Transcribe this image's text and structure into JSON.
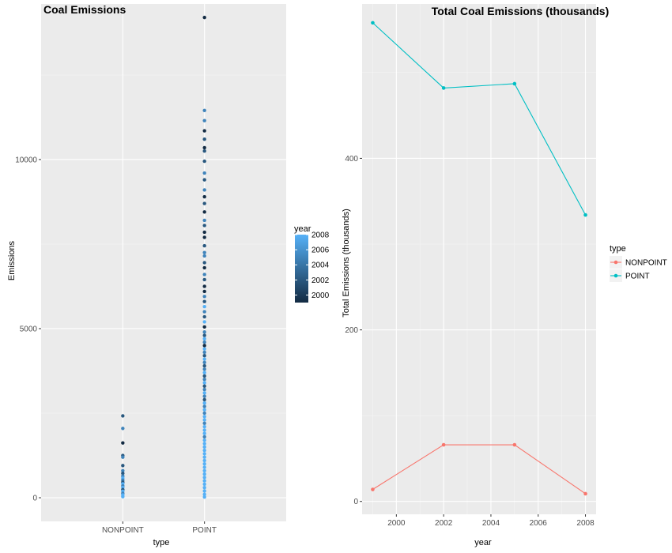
{
  "chart_data": [
    {
      "type": "scatter",
      "title": "Coal Emissions",
      "xlabel": "type",
      "ylabel": "Emissions",
      "categories": [
        "NONPOINT",
        "POINT"
      ],
      "ylim": [
        -700,
        14600
      ],
      "yticks": [
        0,
        5000,
        10000
      ],
      "grid": true,
      "legend": {
        "title": "year",
        "position": "right",
        "labels": [
          "2008",
          "2006",
          "2004",
          "2002",
          "2000"
        ],
        "color_low": "#132b43",
        "color_high": "#56b1f7",
        "range": [
          1999,
          2008
        ]
      },
      "points": {
        "NONPOINT": [
          {
            "y": 2420,
            "year": 2002
          },
          {
            "y": 2050,
            "year": 2005
          },
          {
            "y": 1620,
            "year": 1999
          },
          {
            "y": 1250,
            "year": 2002
          },
          {
            "y": 1200,
            "year": 2005
          },
          {
            "y": 950,
            "year": 2002
          },
          {
            "y": 800,
            "year": 2005
          },
          {
            "y": 720,
            "year": 2002
          },
          {
            "y": 640,
            "year": 2005
          },
          {
            "y": 580,
            "year": 2008
          },
          {
            "y": 520,
            "year": 2005
          },
          {
            "y": 460,
            "year": 2002
          },
          {
            "y": 410,
            "year": 2008
          },
          {
            "y": 350,
            "year": 2005
          },
          {
            "y": 300,
            "year": 2008
          },
          {
            "y": 240,
            "year": 2002
          },
          {
            "y": 190,
            "year": 2008
          },
          {
            "y": 130,
            "year": 2005
          },
          {
            "y": 80,
            "year": 2008
          },
          {
            "y": 30,
            "year": 2008
          }
        ],
        "POINT": [
          {
            "y": 14200,
            "year": 1999
          },
          {
            "y": 11450,
            "year": 2005
          },
          {
            "y": 11150,
            "year": 2005
          },
          {
            "y": 10850,
            "year": 1999
          },
          {
            "y": 10600,
            "year": 2002
          },
          {
            "y": 10350,
            "year": 1999
          },
          {
            "y": 10250,
            "year": 2002
          },
          {
            "y": 9950,
            "year": 2002
          },
          {
            "y": 9600,
            "year": 2005
          },
          {
            "y": 9400,
            "year": 2002
          },
          {
            "y": 9100,
            "year": 2005
          },
          {
            "y": 8900,
            "year": 1999
          },
          {
            "y": 8700,
            "year": 2002
          },
          {
            "y": 8450,
            "year": 1999
          },
          {
            "y": 8200,
            "year": 2005
          },
          {
            "y": 8050,
            "year": 2002
          },
          {
            "y": 7850,
            "year": 1999
          },
          {
            "y": 7700,
            "year": 1999
          },
          {
            "y": 7450,
            "year": 2002
          },
          {
            "y": 7250,
            "year": 2005
          },
          {
            "y": 7150,
            "year": 2005
          },
          {
            "y": 6950,
            "year": 2002
          },
          {
            "y": 6800,
            "year": 1999
          },
          {
            "y": 6600,
            "year": 2005
          },
          {
            "y": 6450,
            "year": 2002
          },
          {
            "y": 6250,
            "year": 1999
          },
          {
            "y": 6100,
            "year": 1999
          },
          {
            "y": 5950,
            "year": 2005
          },
          {
            "y": 5800,
            "year": 2002
          },
          {
            "y": 5650,
            "year": 2008
          },
          {
            "y": 5500,
            "year": 2005
          },
          {
            "y": 5350,
            "year": 2002
          },
          {
            "y": 5200,
            "year": 2008
          },
          {
            "y": 5050,
            "year": 1999
          },
          {
            "y": 4900,
            "year": 2005
          },
          {
            "y": 4800,
            "year": 2002
          },
          {
            "y": 4700,
            "year": 2008
          },
          {
            "y": 4600,
            "year": 2005
          },
          {
            "y": 4500,
            "year": 1999
          },
          {
            "y": 4400,
            "year": 2008
          },
          {
            "y": 4300,
            "year": 2005
          },
          {
            "y": 4200,
            "year": 2002
          },
          {
            "y": 4100,
            "year": 2008
          },
          {
            "y": 4000,
            "year": 2005
          },
          {
            "y": 3900,
            "year": 2002
          },
          {
            "y": 3800,
            "year": 2005
          },
          {
            "y": 3700,
            "year": 2008
          },
          {
            "y": 3600,
            "year": 2002
          },
          {
            "y": 3500,
            "year": 2005
          },
          {
            "y": 3400,
            "year": 2008
          },
          {
            "y": 3300,
            "year": 2002
          },
          {
            "y": 3200,
            "year": 2005
          },
          {
            "y": 3100,
            "year": 2008
          },
          {
            "y": 3000,
            "year": 2005
          },
          {
            "y": 2900,
            "year": 2002
          },
          {
            "y": 2800,
            "year": 2008
          },
          {
            "y": 2700,
            "year": 2005
          },
          {
            "y": 2600,
            "year": 2008
          },
          {
            "y": 2500,
            "year": 2005
          },
          {
            "y": 2400,
            "year": 2008
          },
          {
            "y": 2300,
            "year": 2008
          },
          {
            "y": 2200,
            "year": 2005
          },
          {
            "y": 2100,
            "year": 2008
          },
          {
            "y": 2000,
            "year": 2008
          },
          {
            "y": 1900,
            "year": 2008
          },
          {
            "y": 1800,
            "year": 2005
          },
          {
            "y": 1700,
            "year": 2008
          },
          {
            "y": 1600,
            "year": 2008
          },
          {
            "y": 1500,
            "year": 2008
          },
          {
            "y": 1400,
            "year": 2008
          },
          {
            "y": 1300,
            "year": 2008
          },
          {
            "y": 1200,
            "year": 2008
          },
          {
            "y": 1100,
            "year": 2008
          },
          {
            "y": 1000,
            "year": 2008
          },
          {
            "y": 900,
            "year": 2008
          },
          {
            "y": 800,
            "year": 2008
          },
          {
            "y": 700,
            "year": 2008
          },
          {
            "y": 600,
            "year": 2008
          },
          {
            "y": 500,
            "year": 2008
          },
          {
            "y": 400,
            "year": 2008
          },
          {
            "y": 300,
            "year": 2008
          },
          {
            "y": 200,
            "year": 2008
          },
          {
            "y": 100,
            "year": 2008
          },
          {
            "y": 20,
            "year": 2008
          }
        ]
      }
    },
    {
      "type": "line",
      "title": "Total Coal Emissions (thousands)",
      "xlabel": "year",
      "ylabel": "Total Emissions (thousands)",
      "x": [
        1999,
        2002,
        2005,
        2008
      ],
      "xlim": [
        1998.55,
        2008.45
      ],
      "xticks": [
        2000,
        2002,
        2004,
        2006,
        2008
      ],
      "ylim": [
        -15,
        580
      ],
      "yticks": [
        0,
        200,
        400
      ],
      "grid": true,
      "legend": {
        "title": "type",
        "position": "right",
        "labels": [
          "NONPOINT",
          "POINT"
        ]
      },
      "series": [
        {
          "name": "NONPOINT",
          "color": "#f8766d",
          "values": [
            14,
            66,
            66,
            9
          ]
        },
        {
          "name": "POINT",
          "color": "#00bfc4",
          "values": [
            558,
            482,
            487,
            334
          ]
        }
      ]
    }
  ]
}
